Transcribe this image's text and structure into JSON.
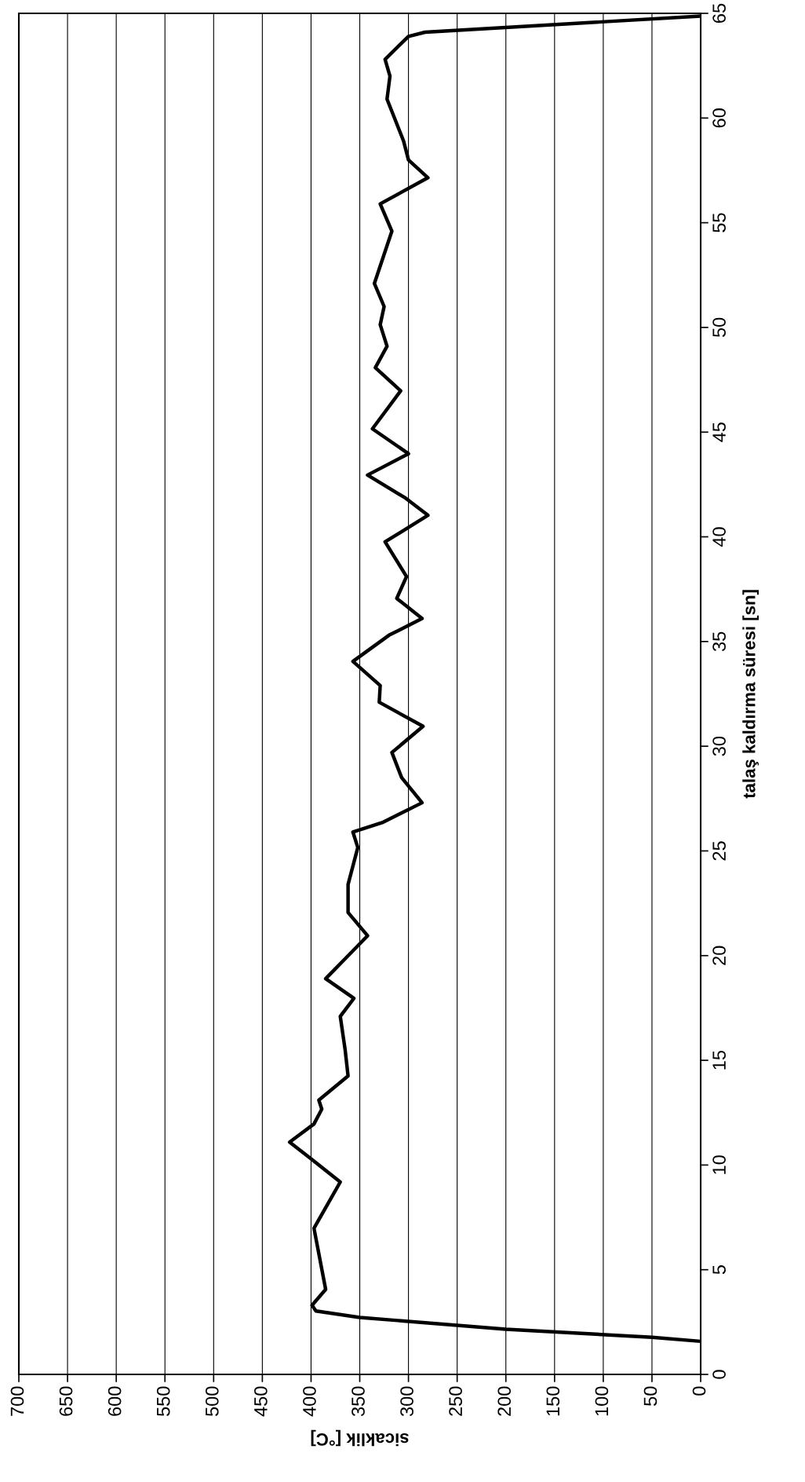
{
  "chart_data": {
    "type": "line",
    "xlabel": "sicaklik [°C]",
    "ylabel": "talaş kaldırma süresi [sn]",
    "xlim": [
      700,
      0
    ],
    "xticks": [
      700,
      650,
      600,
      550,
      500,
      450,
      400,
      350,
      300,
      250,
      200,
      150,
      100,
      50,
      0
    ],
    "ylim": [
      0,
      65
    ],
    "yticks": [
      0,
      5,
      10,
      15,
      20,
      25,
      30,
      35,
      40,
      45,
      50,
      55,
      60,
      65
    ],
    "grid": "x",
    "line_style": "solid",
    "marker": "none",
    "series": [
      {
        "color": "#000000",
        "x": [
          0,
          50,
          200,
          350,
          395,
          399,
          385,
          397,
          370,
          400,
          422,
          397,
          389,
          392,
          362,
          365,
          370,
          356,
          385,
          364,
          342,
          362,
          362,
          352,
          357,
          327,
          286,
          307,
          317,
          285,
          330,
          329,
          357,
          320,
          286,
          312,
          302,
          324,
          280,
          303,
          342,
          300,
          337,
          308,
          334,
          322,
          329,
          325,
          335,
          317,
          329,
          280,
          300,
          305,
          322,
          319,
          324,
          300,
          283,
          0
        ],
        "values": [
          1.58,
          1.77,
          2.16,
          2.72,
          3.03,
          3.3,
          4.06,
          6.98,
          9.19,
          10.3,
          11.09,
          11.96,
          12.67,
          13.1,
          14.25,
          15.5,
          17.1,
          17.96,
          18.9,
          19.9,
          20.95,
          22.06,
          23.4,
          25.16,
          25.9,
          26.35,
          27.3,
          28.5,
          29.7,
          30.95,
          32.1,
          32.9,
          34.05,
          35.3,
          36.1,
          37.06,
          38.1,
          39.76,
          41.03,
          41.85,
          42.95,
          43.97,
          45.16,
          46.97,
          48.08,
          49.1,
          50.13,
          51.0,
          52.1,
          54.6,
          55.9,
          57.15,
          58.0,
          58.9,
          60.9,
          62.0,
          62.8,
          63.9,
          64.1,
          64.87
        ]
      }
    ]
  }
}
